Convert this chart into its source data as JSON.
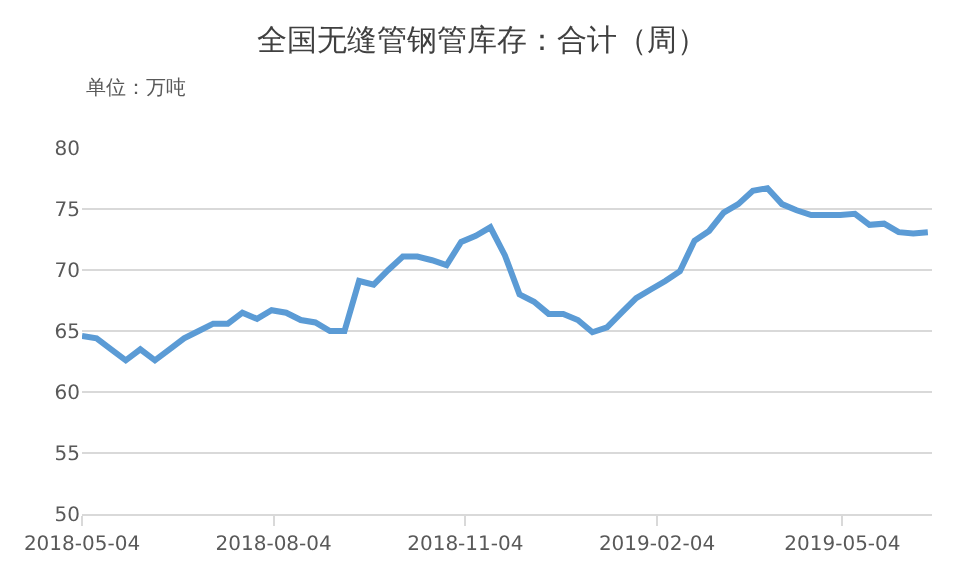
{
  "chart_data": {
    "type": "line",
    "title": "全国无缝管钢管库存：合计（周）",
    "ylabel": "单位：万吨",
    "x": [
      "2018-05-04",
      "2018-05-11",
      "2018-05-18",
      "2018-05-25",
      "2018-06-01",
      "2018-06-08",
      "2018-06-15",
      "2018-06-22",
      "2018-06-29",
      "2018-07-06",
      "2018-07-13",
      "2018-07-20",
      "2018-07-27",
      "2018-08-03",
      "2018-08-10",
      "2018-08-17",
      "2018-08-24",
      "2018-08-31",
      "2018-09-07",
      "2018-09-14",
      "2018-09-21",
      "2018-09-28",
      "2018-10-05",
      "2018-10-12",
      "2018-10-19",
      "2018-10-26",
      "2018-11-02",
      "2018-11-09",
      "2018-11-16",
      "2018-11-23",
      "2018-11-30",
      "2018-12-07",
      "2018-12-14",
      "2018-12-21",
      "2018-12-28",
      "2019-01-04",
      "2019-01-11",
      "2019-01-18",
      "2019-01-25",
      "2019-02-01",
      "2019-02-08",
      "2019-02-15",
      "2019-02-22",
      "2019-03-01",
      "2019-03-08",
      "2019-03-15",
      "2019-03-22",
      "2019-03-29",
      "2019-04-05",
      "2019-04-12",
      "2019-04-19",
      "2019-04-26",
      "2019-05-03",
      "2019-05-10",
      "2019-05-17",
      "2019-05-24",
      "2019-05-31",
      "2019-06-07",
      "2019-06-14"
    ],
    "series": [
      {
        "color": "#5b9bd5",
        "values": [
          64.6,
          64.4,
          63.5,
          62.6,
          63.5,
          62.6,
          63.5,
          64.4,
          65.0,
          65.6,
          65.6,
          66.5,
          66.0,
          66.7,
          66.5,
          65.9,
          65.7,
          65.0,
          65.0,
          69.1,
          68.8,
          70.0,
          71.1,
          71.1,
          70.8,
          70.4,
          72.3,
          72.8,
          73.5,
          71.2,
          68.0,
          67.4,
          66.4,
          66.4,
          65.9,
          64.9,
          65.3,
          66.5,
          67.7,
          68.4,
          69.1,
          69.9,
          72.4,
          73.2,
          74.7,
          75.4,
          76.5,
          76.7,
          75.4,
          74.9,
          74.5,
          74.5,
          74.5,
          74.6,
          73.7,
          73.8,
          73.1,
          73.0,
          73.1
        ]
      }
    ],
    "xlim": [
      "2018-05-04",
      "2019-06-16"
    ],
    "xticks": [
      "2018-05-04",
      "2018-08-04",
      "2018-11-04",
      "2019-02-04",
      "2019-05-04"
    ],
    "ylim": [
      50,
      80
    ],
    "yticks": [
      50,
      55,
      60,
      65,
      70,
      75,
      80
    ],
    "grid": "y",
    "marker": "none",
    "line_style": "solid"
  }
}
